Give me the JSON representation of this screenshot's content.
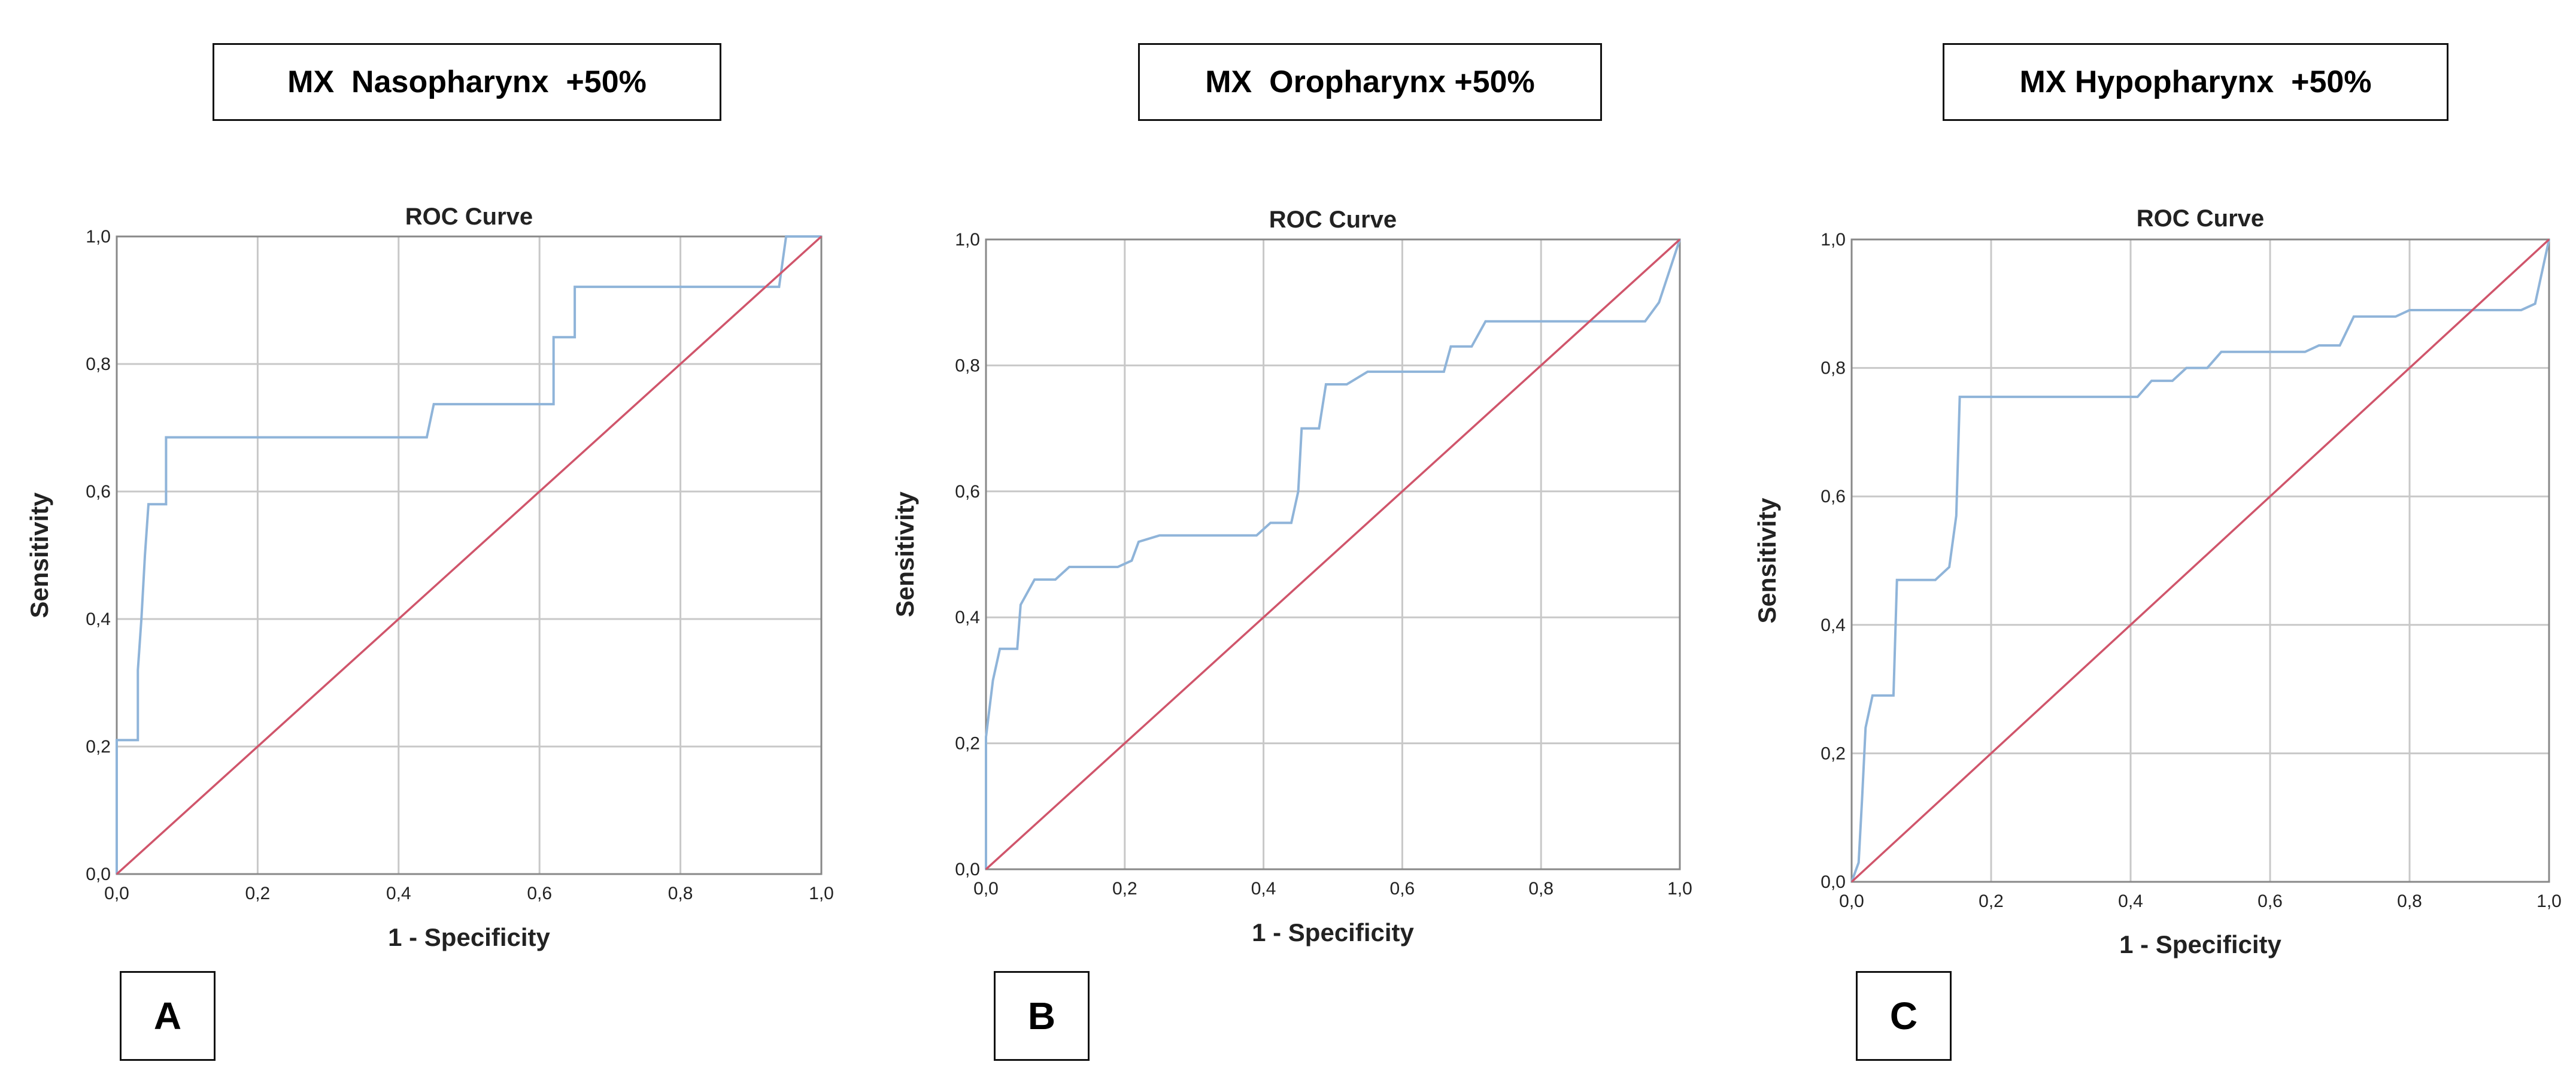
{
  "panels": [
    {
      "id": "A",
      "heading": {
        "prefix": "MX",
        "site": "Nasopharynx",
        "suffix": "+50%"
      },
      "panel_label": "A"
    },
    {
      "id": "B",
      "heading": {
        "prefix": "MX",
        "site": "Oropharynx",
        "suffix": "+50%"
      },
      "panel_label": "B"
    },
    {
      "id": "C",
      "heading": {
        "prefix": "MX",
        "site": "Hypopharynx",
        "suffix": "+50%"
      },
      "panel_label": "C"
    }
  ],
  "colors": {
    "roc": "#8fb4d9",
    "reference": "#d0556b",
    "grid": "#c8c8c8",
    "frame": "#888888"
  },
  "chart_data": [
    {
      "type": "line",
      "title": "ROC Curve",
      "xlabel": "1 - Specificity",
      "ylabel": "Sensitivity",
      "xlim": [
        0,
        1
      ],
      "ylim": [
        0,
        1
      ],
      "xticks": [
        "0,0",
        "0,2",
        "0,4",
        "0,6",
        "0,8",
        "1,0"
      ],
      "yticks": [
        "0,0",
        "0,2",
        "0,4",
        "0,6",
        "0,8",
        "1,0"
      ],
      "grid": true,
      "series": [
        {
          "name": "ROC",
          "points": [
            [
              0,
              0
            ],
            [
              0,
              0.21
            ],
            [
              0.03,
              0.21
            ],
            [
              0.03,
              0.32
            ],
            [
              0.035,
              0.4
            ],
            [
              0.04,
              0.5
            ],
            [
              0.045,
              0.58
            ],
            [
              0.07,
              0.58
            ],
            [
              0.07,
              0.685
            ],
            [
              0.44,
              0.685
            ],
            [
              0.45,
              0.737
            ],
            [
              0.62,
              0.737
            ],
            [
              0.62,
              0.842
            ],
            [
              0.65,
              0.842
            ],
            [
              0.65,
              0.921
            ],
            [
              0.94,
              0.921
            ],
            [
              0.95,
              1.0
            ],
            [
              1.0,
              1.0
            ]
          ]
        },
        {
          "name": "Reference",
          "points": [
            [
              0,
              0
            ],
            [
              1,
              1
            ]
          ]
        }
      ]
    },
    {
      "type": "line",
      "title": "ROC Curve",
      "xlabel": "1 - Specificity",
      "ylabel": "Sensitivity",
      "xlim": [
        0,
        1
      ],
      "ylim": [
        0,
        1
      ],
      "xticks": [
        "0,0",
        "0,2",
        "0,4",
        "0,6",
        "0,8",
        "1,0"
      ],
      "yticks": [
        "0,0",
        "0,2",
        "0,4",
        "0,6",
        "0,8",
        "1,0"
      ],
      "grid": true,
      "series": [
        {
          "name": "ROC",
          "points": [
            [
              0,
              0
            ],
            [
              0,
              0.21
            ],
            [
              0.01,
              0.3
            ],
            [
              0.02,
              0.35
            ],
            [
              0.045,
              0.35
            ],
            [
              0.05,
              0.42
            ],
            [
              0.07,
              0.46
            ],
            [
              0.1,
              0.46
            ],
            [
              0.12,
              0.48
            ],
            [
              0.19,
              0.48
            ],
            [
              0.21,
              0.49
            ],
            [
              0.22,
              0.52
            ],
            [
              0.25,
              0.53
            ],
            [
              0.39,
              0.53
            ],
            [
              0.41,
              0.55
            ],
            [
              0.44,
              0.55
            ],
            [
              0.45,
              0.6
            ],
            [
              0.455,
              0.7
            ],
            [
              0.48,
              0.7
            ],
            [
              0.49,
              0.77
            ],
            [
              0.52,
              0.77
            ],
            [
              0.55,
              0.79
            ],
            [
              0.66,
              0.79
            ],
            [
              0.67,
              0.83
            ],
            [
              0.7,
              0.83
            ],
            [
              0.72,
              0.87
            ],
            [
              0.95,
              0.87
            ],
            [
              0.97,
              0.9
            ],
            [
              1.0,
              1.0
            ]
          ]
        },
        {
          "name": "Reference",
          "points": [
            [
              0,
              0
            ],
            [
              1,
              1
            ]
          ]
        }
      ]
    },
    {
      "type": "line",
      "title": "ROC Curve",
      "xlabel": "1 - Specificity",
      "ylabel": "Sensitivity",
      "xlim": [
        0,
        1
      ],
      "ylim": [
        0,
        1
      ],
      "xticks": [
        "0,0",
        "0,2",
        "0,4",
        "0,6",
        "0,8",
        "1,0"
      ],
      "yticks": [
        "0,0",
        "0,2",
        "0,4",
        "0,6",
        "0,8",
        "1,0"
      ],
      "grid": true,
      "series": [
        {
          "name": "ROC",
          "points": [
            [
              0,
              0
            ],
            [
              0.01,
              0.03
            ],
            [
              0.015,
              0.13
            ],
            [
              0.02,
              0.24
            ],
            [
              0.03,
              0.29
            ],
            [
              0.06,
              0.29
            ],
            [
              0.065,
              0.47
            ],
            [
              0.12,
              0.47
            ],
            [
              0.14,
              0.49
            ],
            [
              0.15,
              0.57
            ],
            [
              0.155,
              0.755
            ],
            [
              0.41,
              0.755
            ],
            [
              0.43,
              0.78
            ],
            [
              0.46,
              0.78
            ],
            [
              0.48,
              0.8
            ],
            [
              0.51,
              0.8
            ],
            [
              0.53,
              0.825
            ],
            [
              0.65,
              0.825
            ],
            [
              0.67,
              0.835
            ],
            [
              0.7,
              0.835
            ],
            [
              0.72,
              0.88
            ],
            [
              0.78,
              0.88
            ],
            [
              0.8,
              0.89
            ],
            [
              0.96,
              0.89
            ],
            [
              0.98,
              0.9
            ],
            [
              1.0,
              1.0
            ]
          ]
        },
        {
          "name": "Reference",
          "points": [
            [
              0,
              0
            ],
            [
              1,
              1
            ]
          ]
        }
      ]
    }
  ]
}
